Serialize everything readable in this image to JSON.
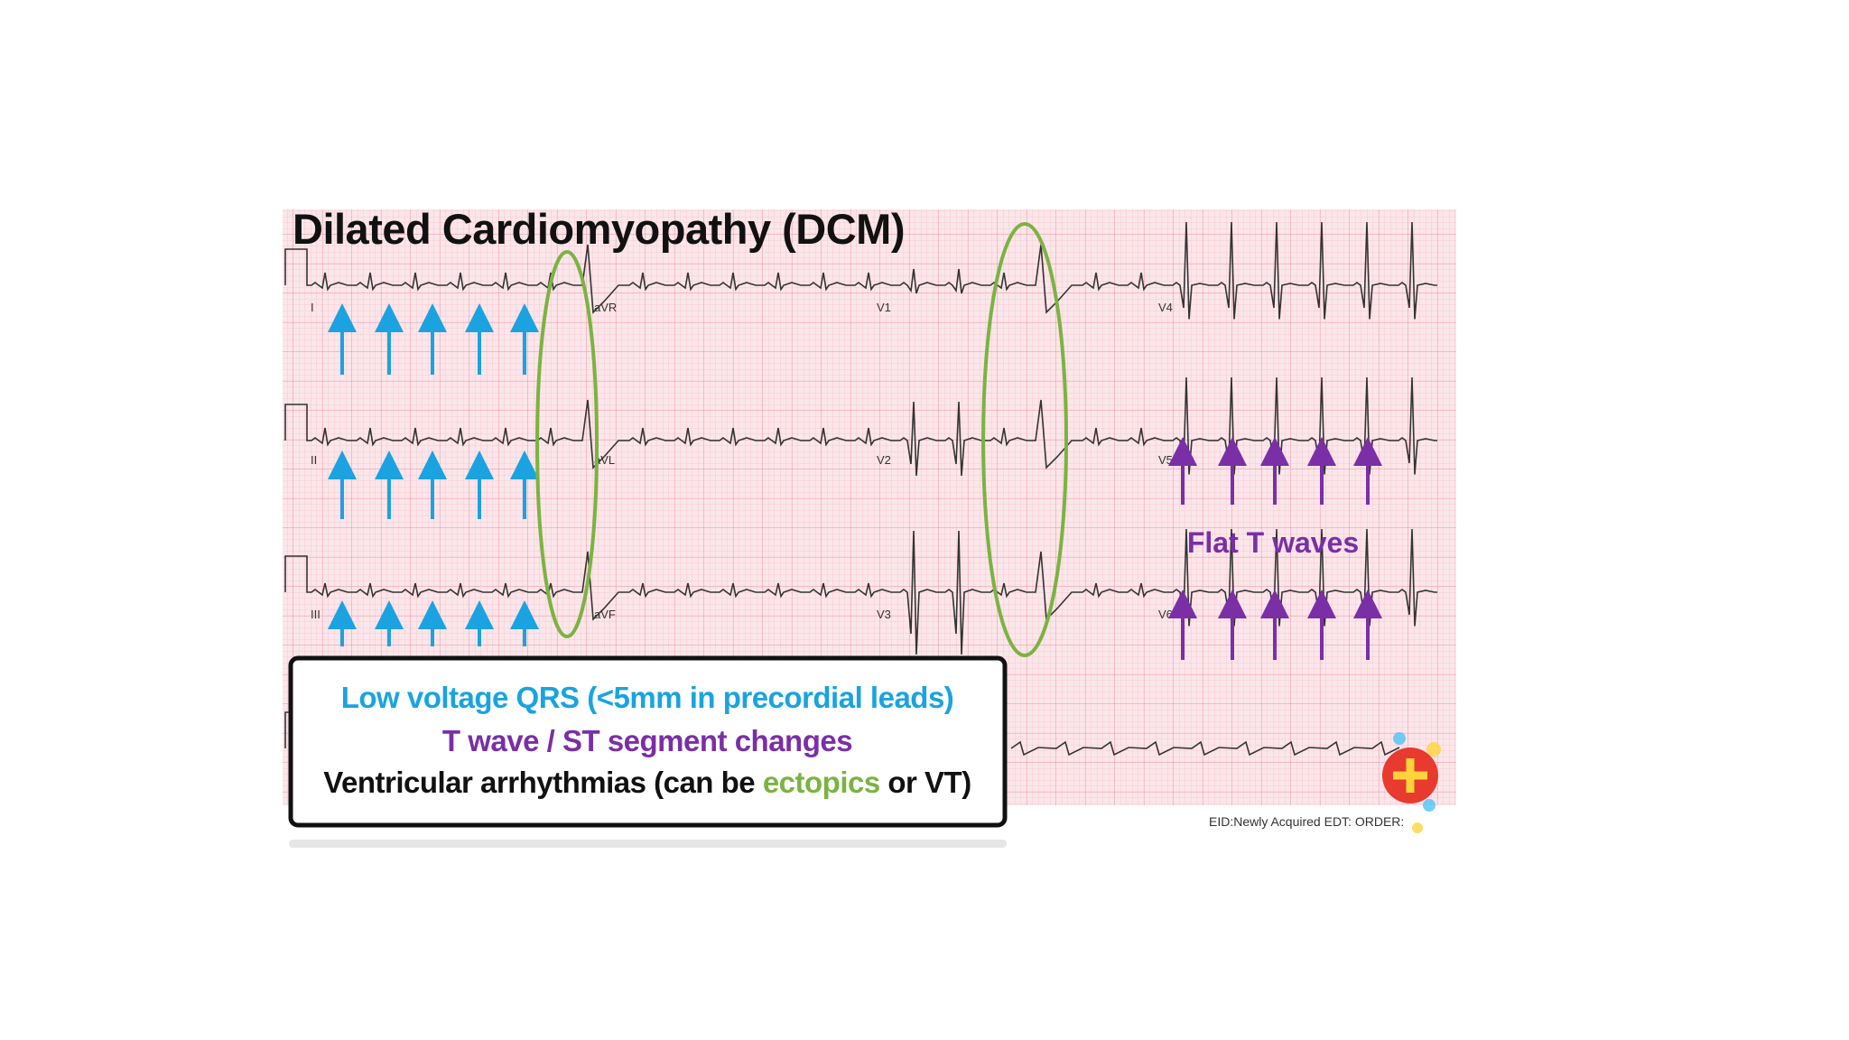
{
  "title": "Dilated Cardiomyopathy (DCM)",
  "leads": [
    "I",
    "aVR",
    "V1",
    "V4",
    "II",
    "aVL",
    "V2",
    "V5",
    "III",
    "aVF",
    "V3",
    "V6"
  ],
  "annotation": "Flat T waves",
  "box": {
    "line1": "Low voltage QRS (<5mm in precordial leads)",
    "line2": "T wave / ST segment changes",
    "line3": {
      "before": "Ventricular arrhythmias (can be ",
      "highlight": "ectopics",
      "after": " or VT)"
    }
  },
  "footer": "EID:Newly Acquired EDT:  ORDER:"
}
